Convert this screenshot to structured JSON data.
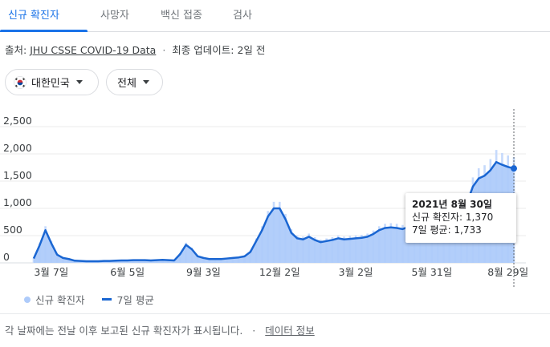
{
  "tabs": [
    {
      "label": "신규 확진자"
    },
    {
      "label": "사망자"
    },
    {
      "label": "백신 접종"
    },
    {
      "label": "검사"
    }
  ],
  "source": {
    "prefix": "출처:",
    "link": "JHU CSSE COVID-19 Data",
    "separator": "·",
    "updated": "최종 업데이트: 2일 전"
  },
  "filters": {
    "country": "대한민국",
    "range": "전체"
  },
  "tooltip": {
    "date": "2021년 8월 30일",
    "new_cases": "신규 확진자: 1,370",
    "avg7": "7일 평균: 1,733"
  },
  "legend": {
    "new_cases": "신규 확진자",
    "avg7": "7일 평균"
  },
  "footer": {
    "note": "각 날짜에는 전날 이후 보고된 신규 확진자가 표시됩니다.",
    "separator": "·",
    "link": "데이터 정보"
  },
  "colors": {
    "accent": "#1a73e8",
    "avg_line": "#1a66d2",
    "bars": "#aecbfa"
  },
  "chart_data": {
    "type": "area",
    "y_ticks": [
      "2,500",
      "2,000",
      "1,500",
      "1,000",
      "500",
      "0"
    ],
    "y_tick_values": [
      2500,
      2000,
      1500,
      1000,
      500,
      0
    ],
    "ylim": [
      0,
      2500
    ],
    "x_ticks": [
      {
        "label": "3월 7일",
        "week": 3
      },
      {
        "label": "6월 5일",
        "week": 16
      },
      {
        "label": "9월 3일",
        "week": 29
      },
      {
        "label": "12월 2일",
        "week": 42
      },
      {
        "label": "3월 2일",
        "week": 55
      },
      {
        "label": "5월 31일",
        "week": 68
      },
      {
        "label": "8월 29일",
        "week": 81
      }
    ],
    "x_domain": [
      0,
      82
    ],
    "grid": true,
    "legend_position": "bottom-left",
    "series": [
      {
        "name": "7일 평균",
        "values": [
          80,
          320,
          600,
          360,
          150,
          90,
          70,
          40,
          35,
          30,
          30,
          30,
          35,
          35,
          40,
          45,
          45,
          50,
          50,
          50,
          45,
          50,
          55,
          50,
          45,
          160,
          330,
          250,
          120,
          90,
          70,
          70,
          70,
          80,
          90,
          100,
          120,
          200,
          400,
          600,
          850,
          1000,
          1000,
          800,
          550,
          450,
          430,
          480,
          420,
          380,
          400,
          420,
          450,
          430,
          440,
          450,
          460,
          480,
          530,
          600,
          640,
          650,
          640,
          620,
          660,
          640,
          600,
          580,
          620,
          640,
          600,
          560,
          600,
          750,
          1100,
          1400,
          1550,
          1600,
          1700,
          1850,
          1800,
          1760,
          1733
        ]
      }
    ],
    "highlight": {
      "week": 82,
      "value": 1733
    }
  }
}
